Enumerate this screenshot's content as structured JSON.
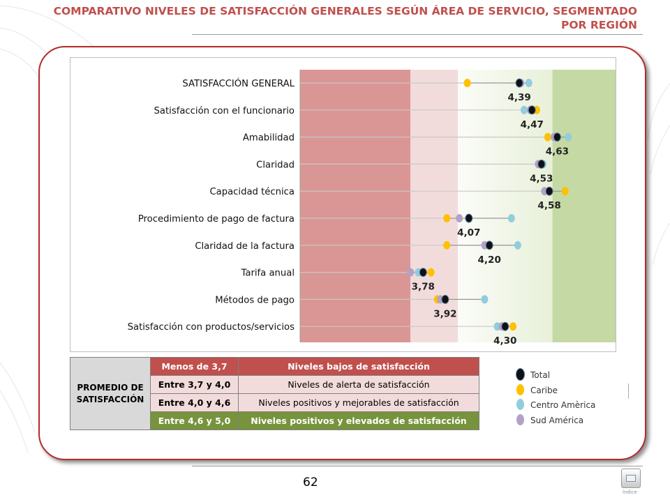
{
  "title": "COMPARATIVO NIVELES DE SATISFACCIÓN GENERALES SEGÚN ÁREA DE SERVICIO, SEGMENTADO POR REGIÓN",
  "page_number": "62",
  "nav_label": "índice",
  "colors": {
    "total": "#111111",
    "caribe": "#ffc000",
    "centro_america": "#92cddc",
    "sud_america": "#b3a2c7",
    "zone_low": "#da9694",
    "zone_alert": "#f2dcdb",
    "zone_positive": "#f3f7ea",
    "zone_high": "#c5d9a4",
    "title": "#c0504d"
  },
  "chart_data": {
    "type": "scatter",
    "title": "",
    "xlim": [
      3.0,
      5.0
    ],
    "bands": [
      {
        "from": 3.0,
        "to": 3.7
      },
      {
        "from": 3.7,
        "to": 4.0
      },
      {
        "from": 4.0,
        "to": 4.6
      },
      {
        "from": 4.6,
        "to": 5.0
      }
    ],
    "categories": [
      "SATISFACCIÓN GENERAL",
      "Satisfacción con el funcionario",
      "Amabilidad",
      "Claridad",
      "Capacidad técnica",
      "Procedimiento de pago de factura",
      "Claridad de la factura",
      "Tarifa anual",
      "Métodos de pago",
      "Satisfacción con productos/servicios"
    ],
    "total_labels": [
      "4,39",
      "4,47",
      "4,63",
      "4,53",
      "4,58",
      "4,07",
      "4,20",
      "3,78",
      "3,92",
      "4,30"
    ],
    "series": [
      {
        "name": "Total",
        "values": [
          4.39,
          4.47,
          4.63,
          4.53,
          4.58,
          4.07,
          4.2,
          3.78,
          3.92,
          4.3
        ]
      },
      {
        "name": "Caribe",
        "values": [
          4.06,
          4.5,
          4.57,
          4.52,
          4.68,
          3.93,
          3.93,
          3.83,
          3.87,
          4.35
        ]
      },
      {
        "name": "Centro Amèrica",
        "values": [
          4.45,
          4.42,
          4.7,
          4.54,
          4.58,
          4.34,
          4.38,
          3.75,
          4.17,
          4.25
        ]
      },
      {
        "name": "Sud América",
        "values": [
          4.4,
          4.46,
          4.61,
          4.51,
          4.55,
          4.01,
          4.17,
          3.7,
          3.89,
          4.28
        ]
      }
    ]
  },
  "legend_table": {
    "header": "PROMEDIO DE SATISFACCIÓN",
    "rows": [
      {
        "range": "Menos de 3,7",
        "desc": "Niveles bajos de satisfacción"
      },
      {
        "range": "Entre 3,7 y 4,0",
        "desc": "Niveles de alerta de satisfacción"
      },
      {
        "range": "Entre 4,0 y 4,6",
        "desc": "Niveles positivos y mejorables de satisfacción"
      },
      {
        "range": "Entre 4,6 y 5,0",
        "desc": "Niveles positivos y  elevados de satisfacción"
      }
    ]
  },
  "legend": [
    {
      "label": "Total",
      "color": "#111111"
    },
    {
      "label": "Caribe",
      "color": "#ffc000"
    },
    {
      "label": "Centro Amèrica",
      "color": "#92cddc"
    },
    {
      "label": "Sud América",
      "color": "#b3a2c7"
    }
  ]
}
